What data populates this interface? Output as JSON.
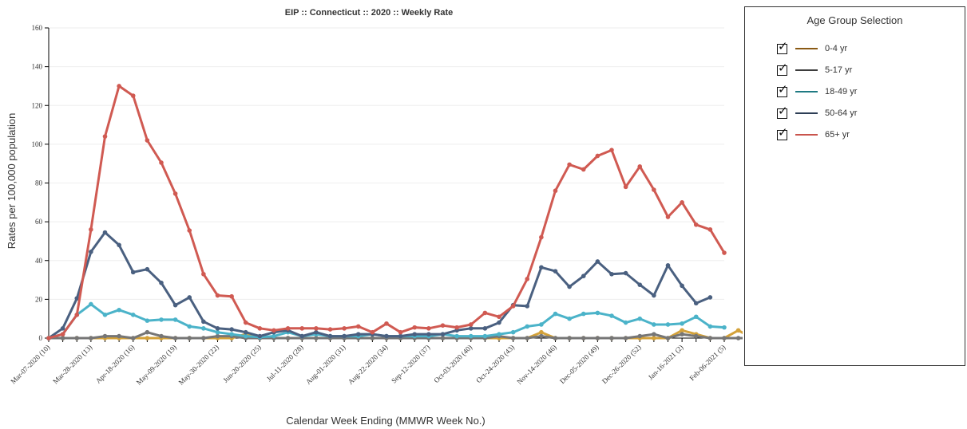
{
  "chart_data": {
    "type": "line",
    "title": "EIP :: Connecticut :: 2020 :: Weekly Rate",
    "xlabel": "Calendar Week Ending (MMWR Week No.)",
    "ylabel": "Rates per 100,000 population",
    "ylim": [
      0,
      160
    ],
    "yticks": [
      "0",
      "20",
      "40",
      "60",
      "80",
      "100",
      "120",
      "140",
      "160"
    ],
    "grid": true,
    "legend_position": "right",
    "x_tick_labels": [
      "Mar-07-2020 (10)",
      "Mar-28-2020 (13)",
      "Apr-18-2020 (16)",
      "May-09-2020 (19)",
      "May-30-2020 (22)",
      "Jun-20-2020 (25)",
      "Jul-11-2020 (28)",
      "Aug-01-2020 (31)",
      "Aug-22-2020 (34)",
      "Sep-12-2020 (37)",
      "Oct-03-2020 (40)",
      "Oct-24-2020 (43)",
      "Nov-14-2020 (46)",
      "Dec-05-2020 (49)",
      "Dec-26-2020 (52)",
      "Jan-16-2021 (2)",
      "Feb-06-2021 (5)"
    ],
    "series": [
      {
        "name": "0-4 yr",
        "color": "#d4a23a",
        "values": [
          0,
          0,
          0,
          0,
          0,
          0,
          0,
          0,
          0,
          0,
          0,
          0,
          0,
          0,
          2,
          0,
          0,
          0,
          0,
          0,
          0,
          0,
          0,
          0,
          0,
          0,
          0,
          0,
          0,
          0,
          0,
          0,
          0,
          0,
          0,
          3,
          0,
          0,
          0,
          0,
          0,
          0,
          0,
          0,
          0,
          4,
          2,
          0,
          0,
          4,
          0,
          0,
          4,
          0,
          0,
          0,
          4,
          2,
          0
        ]
      },
      {
        "name": "5-17 yr",
        "color": "#767676",
        "values": [
          0,
          0,
          0,
          0,
          1,
          1,
          0,
          3,
          1,
          0,
          0,
          0,
          1,
          1,
          0,
          0,
          0,
          0,
          0,
          0,
          0,
          0,
          0,
          0,
          0,
          0,
          0,
          0,
          0,
          0,
          0,
          0,
          1,
          0,
          0,
          1,
          0,
          0,
          0,
          0,
          0,
          0,
          1,
          2,
          0,
          2,
          1,
          0,
          0,
          0,
          0,
          0,
          0,
          0,
          0,
          0,
          1,
          0,
          0
        ]
      },
      {
        "name": "18-49 yr",
        "color": "#4bb3c9",
        "values": [
          0,
          2,
          12,
          17.5,
          12,
          14.5,
          12,
          9,
          9.5,
          9.5,
          6,
          5,
          3,
          2,
          1,
          0.5,
          1,
          3,
          1,
          2,
          1,
          1,
          1,
          2,
          1,
          1,
          1,
          1,
          2,
          1,
          1,
          1,
          2,
          3,
          6,
          7,
          12.5,
          10,
          12.5,
          13,
          11.5,
          8,
          10,
          7,
          7,
          7.5,
          11,
          6,
          5.5
        ]
      },
      {
        "name": "50-64 yr",
        "color": "#4a6080",
        "values": [
          0,
          5,
          20.5,
          44.5,
          54.5,
          48,
          34,
          35.5,
          28.5,
          17,
          21,
          8.5,
          5,
          4.5,
          3,
          1,
          3,
          4,
          1,
          3,
          1,
          1,
          2,
          2,
          1,
          1,
          2,
          2,
          2,
          4,
          5,
          5,
          8,
          17,
          16.5,
          36.5,
          34.5,
          26.5,
          32,
          39.5,
          33,
          33.5,
          27.5,
          22,
          37.5,
          27,
          18,
          21
        ]
      },
      {
        "name": "65+ yr",
        "color": "#d05a52",
        "values": [
          0,
          2,
          12,
          56,
          104,
          130,
          125,
          102,
          90.5,
          74.5,
          55.5,
          33,
          22,
          21.5,
          8,
          5,
          4,
          5,
          5,
          5,
          4.5,
          5,
          6,
          3,
          7.5,
          3,
          5.5,
          5,
          6.5,
          5.5,
          7,
          13,
          11,
          16.5,
          30.5,
          52,
          76,
          89.5,
          87,
          94,
          97,
          78,
          88.5,
          76.5,
          62.5,
          70,
          58.5,
          56,
          44
        ]
      }
    ]
  },
  "legend": {
    "title": "Age Group Selection",
    "items": [
      "0-4 yr",
      "5-17 yr",
      "18-49 yr",
      "50-64 yr",
      "65+ yr"
    ]
  }
}
